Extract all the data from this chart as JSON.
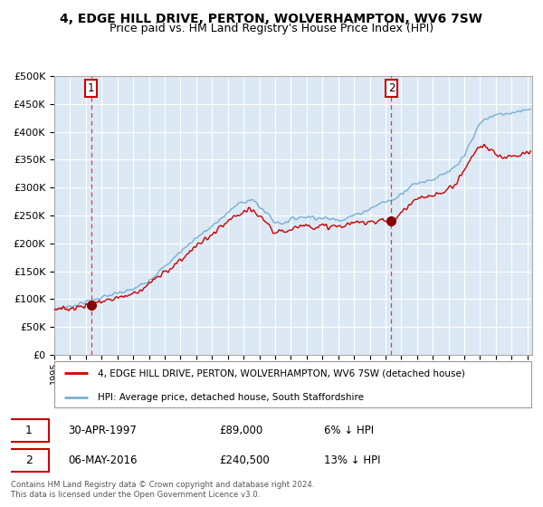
{
  "title": "4, EDGE HILL DRIVE, PERTON, WOLVERHAMPTON, WV6 7SW",
  "subtitle": "Price paid vs. HM Land Registry's House Price Index (HPI)",
  "ylim": [
    0,
    500000
  ],
  "yticks": [
    0,
    50000,
    100000,
    150000,
    200000,
    250000,
    300000,
    350000,
    400000,
    450000,
    500000
  ],
  "xlim_start": 1995.0,
  "xlim_end": 2025.3,
  "bg_color": "#dce9f5",
  "line1_color": "#cc0000",
  "line2_color": "#7bafd4",
  "marker_color": "#8b0000",
  "vline_color": "#cc3333",
  "point1_x": 1997.33,
  "point1_y": 89000,
  "point2_x": 2016.37,
  "point2_y": 240500,
  "legend_line1": "4, EDGE HILL DRIVE, PERTON, WOLVERHAMPTON, WV6 7SW (detached house)",
  "legend_line2": "HPI: Average price, detached house, South Staffordshire",
  "table_row1": [
    "1",
    "30-APR-1997",
    "£89,000",
    "6% ↓ HPI"
  ],
  "table_row2": [
    "2",
    "06-MAY-2016",
    "£240,500",
    "13% ↓ HPI"
  ],
  "footer": "Contains HM Land Registry data © Crown copyright and database right 2024.\nThis data is licensed under the Open Government Licence v3.0.",
  "title_fontsize": 10,
  "subtitle_fontsize": 9
}
